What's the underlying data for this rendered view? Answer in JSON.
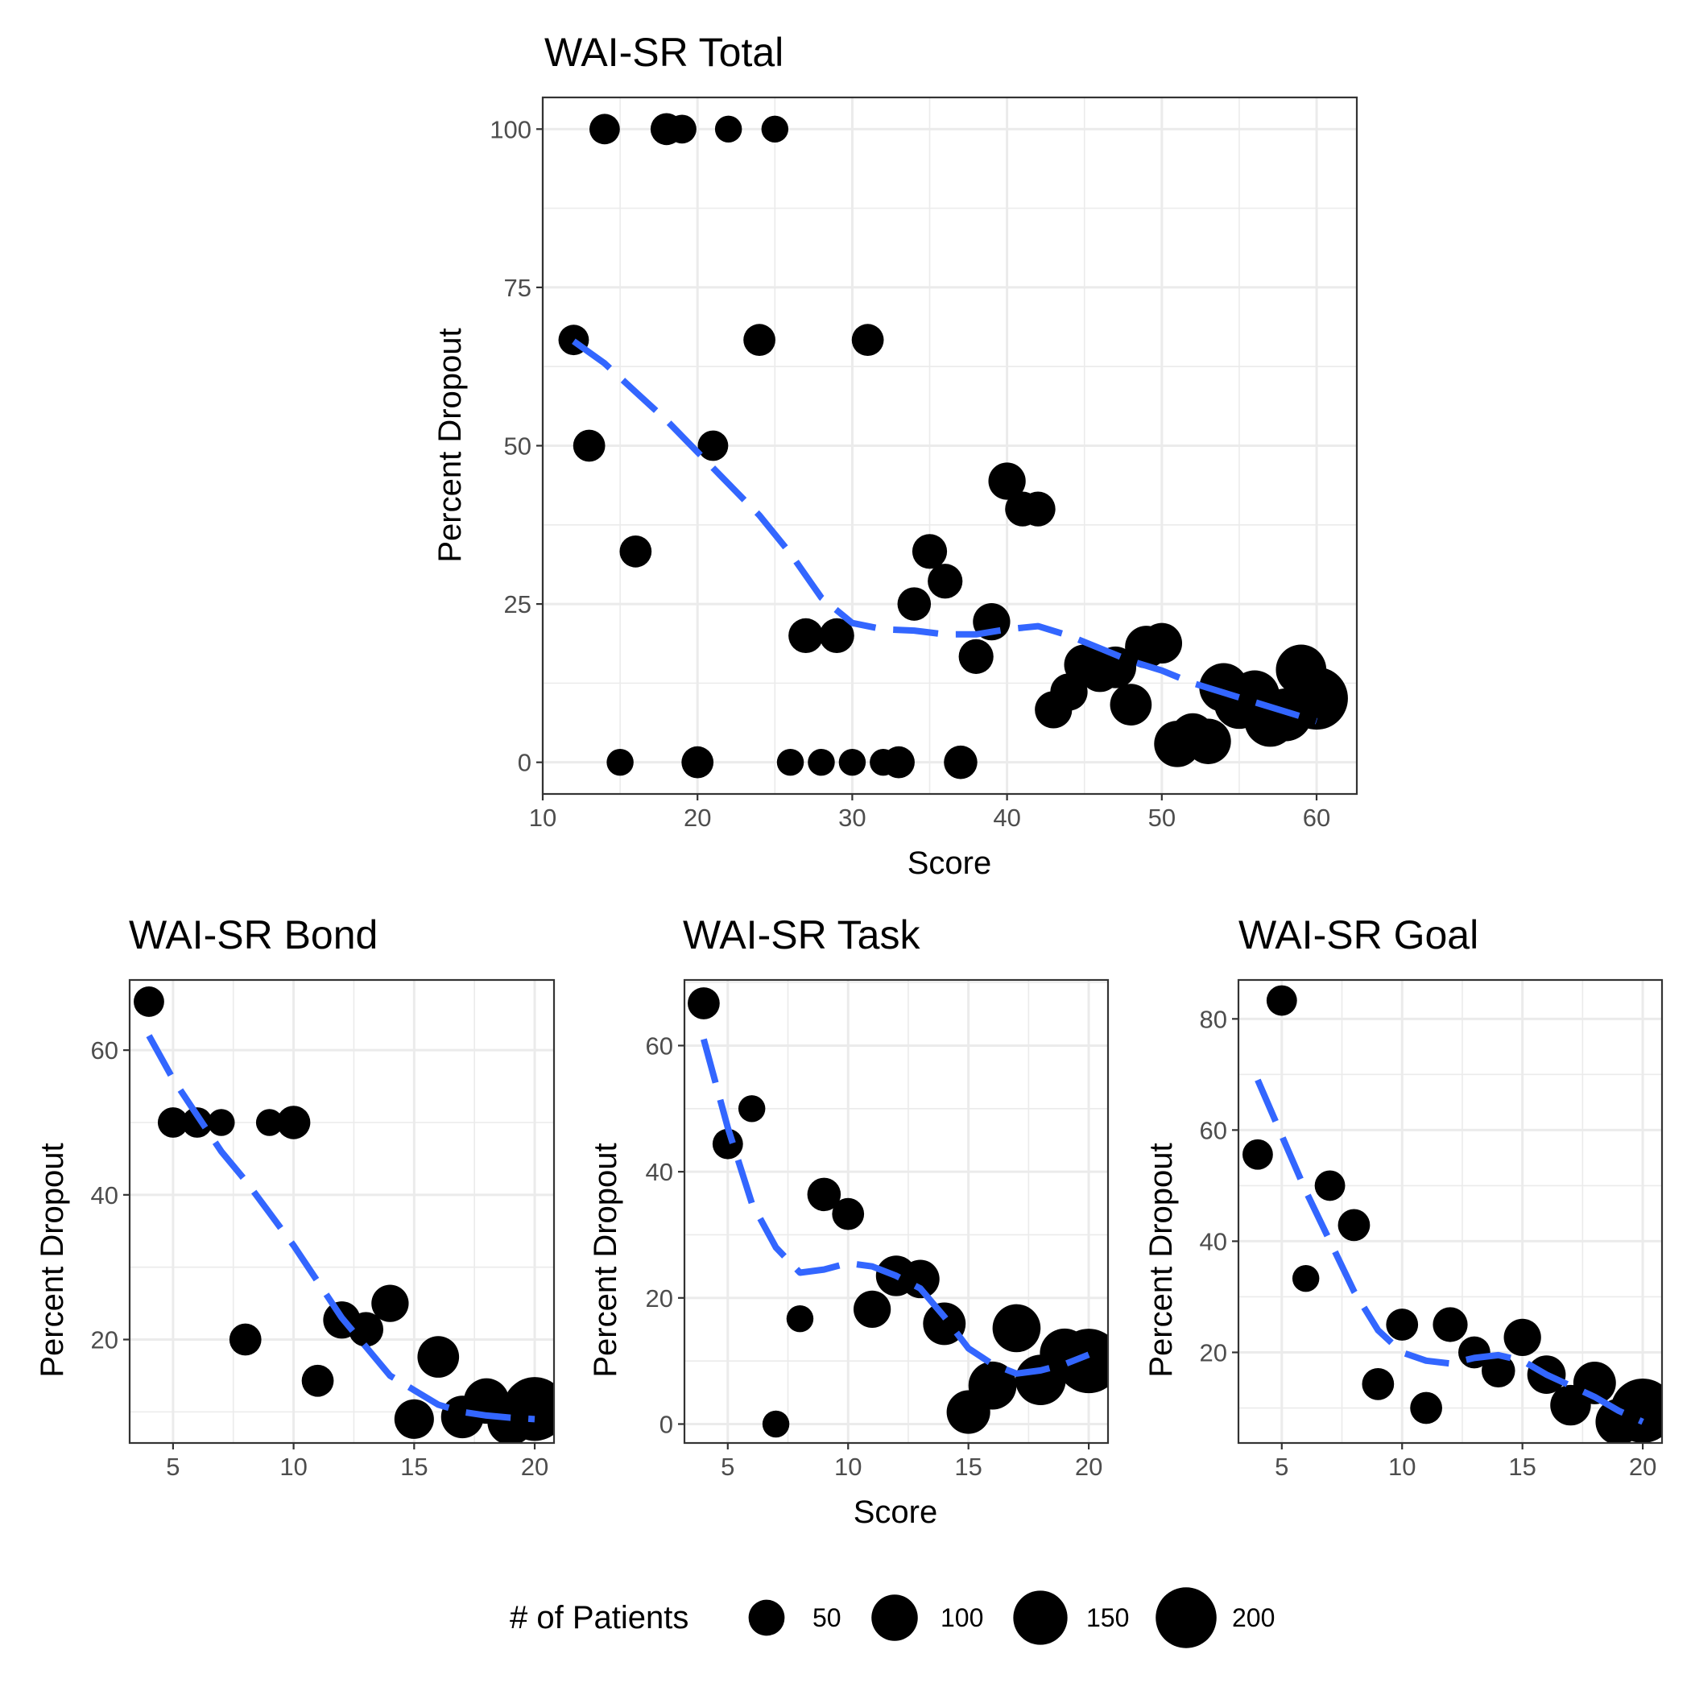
{
  "colors": {
    "smooth": "#3366FF",
    "point": "#000000",
    "grid": "#EBEBEB",
    "frame": "#333333",
    "tick_label": "#4D4D4D"
  },
  "legend": {
    "title": "# of Patients",
    "placement": "bottom",
    "entries": [
      {
        "label": "50",
        "value": 50
      },
      {
        "label": "100",
        "value": 100
      },
      {
        "label": "150",
        "value": 150
      },
      {
        "label": "200",
        "value": 200
      }
    ]
  },
  "chart_data": [
    {
      "id": "total",
      "type": "scatter",
      "title": "WAI-SR Total",
      "xlabel": "Score",
      "ylabel": "Percent Dropout",
      "xlim": [
        10,
        62.6
      ],
      "ylim": [
        -5,
        105
      ],
      "xticks": [
        10,
        20,
        30,
        40,
        50,
        60
      ],
      "xtick_labels": [
        "10",
        "20",
        "30",
        "40",
        "50",
        "60"
      ],
      "yticks": [
        0,
        25,
        50,
        75,
        100
      ],
      "ytick_labels": [
        "0",
        "25",
        "50",
        "75",
        "100"
      ],
      "points": [
        {
          "x": 12,
          "y": 66.7,
          "n": 30
        },
        {
          "x": 13,
          "y": 50,
          "n": 35
        },
        {
          "x": 14,
          "y": 100,
          "n": 30
        },
        {
          "x": 15,
          "y": 0,
          "n": 20
        },
        {
          "x": 16,
          "y": 33.3,
          "n": 35
        },
        {
          "x": 18,
          "y": 100,
          "n": 35
        },
        {
          "x": 19,
          "y": 100,
          "n": 25
        },
        {
          "x": 20,
          "y": 0,
          "n": 35
        },
        {
          "x": 21,
          "y": 50,
          "n": 30
        },
        {
          "x": 22,
          "y": 100,
          "n": 20
        },
        {
          "x": 24,
          "y": 66.7,
          "n": 35
        },
        {
          "x": 25,
          "y": 100,
          "n": 20
        },
        {
          "x": 26,
          "y": 0,
          "n": 20
        },
        {
          "x": 27,
          "y": 20,
          "n": 45
        },
        {
          "x": 28,
          "y": 0,
          "n": 20
        },
        {
          "x": 29,
          "y": 20,
          "n": 45
        },
        {
          "x": 30,
          "y": 0,
          "n": 20
        },
        {
          "x": 31,
          "y": 66.7,
          "n": 35
        },
        {
          "x": 32,
          "y": 0,
          "n": 20
        },
        {
          "x": 33,
          "y": 0,
          "n": 35
        },
        {
          "x": 34,
          "y": 25,
          "n": 40
        },
        {
          "x": 35,
          "y": 33.3,
          "n": 45
        },
        {
          "x": 36,
          "y": 28.6,
          "n": 45
        },
        {
          "x": 37,
          "y": 0,
          "n": 40
        },
        {
          "x": 38,
          "y": 16.7,
          "n": 45
        },
        {
          "x": 39,
          "y": 22.2,
          "n": 55
        },
        {
          "x": 40,
          "y": 44.4,
          "n": 55
        },
        {
          "x": 41,
          "y": 40,
          "n": 45
        },
        {
          "x": 42,
          "y": 40,
          "n": 45
        },
        {
          "x": 43,
          "y": 8.3,
          "n": 55
        },
        {
          "x": 44,
          "y": 11.1,
          "n": 55
        },
        {
          "x": 45,
          "y": 15.4,
          "n": 70
        },
        {
          "x": 46,
          "y": 14.3,
          "n": 70
        },
        {
          "x": 47,
          "y": 15,
          "n": 75
        },
        {
          "x": 48,
          "y": 9.1,
          "n": 75
        },
        {
          "x": 49,
          "y": 18.2,
          "n": 80
        },
        {
          "x": 50,
          "y": 18.8,
          "n": 70
        },
        {
          "x": 51,
          "y": 2.9,
          "n": 100
        },
        {
          "x": 52,
          "y": 4.3,
          "n": 85
        },
        {
          "x": 53,
          "y": 3.3,
          "n": 95
        },
        {
          "x": 54,
          "y": 11.8,
          "n": 115
        },
        {
          "x": 55,
          "y": 9.2,
          "n": 120
        },
        {
          "x": 56,
          "y": 10.6,
          "n": 120
        },
        {
          "x": 57,
          "y": 6.5,
          "n": 130
        },
        {
          "x": 58,
          "y": 7.5,
          "n": 140
        },
        {
          "x": 59,
          "y": 14.6,
          "n": 125
        },
        {
          "x": 60,
          "y": 10.1,
          "n": 215
        }
      ],
      "smooth": {
        "x": [
          12,
          14,
          16,
          18,
          20,
          22,
          24,
          26,
          28,
          30,
          32,
          34,
          36,
          38,
          40,
          42,
          44,
          46,
          48,
          50,
          52,
          54,
          56,
          58,
          60
        ],
        "y": [
          66.5,
          63,
          58.5,
          54,
          49,
          44,
          39,
          33,
          26,
          22,
          21,
          20.8,
          20.2,
          20.2,
          21,
          21.5,
          20,
          18,
          16,
          14.5,
          12.5,
          11,
          9.5,
          8,
          6.5
        ]
      }
    },
    {
      "id": "bond",
      "type": "scatter",
      "title": "WAI-SR Bond",
      "xlabel": "",
      "ylabel": "Percent Dropout",
      "xlim": [
        3.2,
        20.8
      ],
      "ylim": [
        5.7,
        69.7
      ],
      "xticks": [
        5,
        10,
        15,
        20
      ],
      "xtick_labels": [
        "5",
        "10",
        "15",
        "20"
      ],
      "yticks": [
        20,
        40,
        60
      ],
      "ytick_labels": [
        "20",
        "40",
        "60"
      ],
      "points": [
        {
          "x": 4,
          "y": 66.7,
          "n": 30
        },
        {
          "x": 5,
          "y": 50,
          "n": 30
        },
        {
          "x": 6,
          "y": 50,
          "n": 30
        },
        {
          "x": 7,
          "y": 50,
          "n": 20
        },
        {
          "x": 8,
          "y": 20,
          "n": 35
        },
        {
          "x": 9,
          "y": 50,
          "n": 20
        },
        {
          "x": 10,
          "y": 50,
          "n": 40
        },
        {
          "x": 11,
          "y": 14.3,
          "n": 35
        },
        {
          "x": 12,
          "y": 22.7,
          "n": 55
        },
        {
          "x": 13,
          "y": 21.4,
          "n": 45
        },
        {
          "x": 14,
          "y": 25,
          "n": 55
        },
        {
          "x": 15,
          "y": 9,
          "n": 65
        },
        {
          "x": 16,
          "y": 17.6,
          "n": 75
        },
        {
          "x": 17,
          "y": 9.3,
          "n": 80
        },
        {
          "x": 18,
          "y": 11.5,
          "n": 95
        },
        {
          "x": 19,
          "y": 8.6,
          "n": 100
        },
        {
          "x": 20,
          "y": 10.4,
          "n": 225
        }
      ],
      "smooth": {
        "x": [
          4,
          5,
          6,
          7,
          8,
          9,
          10,
          11,
          12,
          13,
          14,
          15,
          16,
          17,
          18,
          19,
          20
        ],
        "y": [
          62,
          56,
          51,
          46,
          42,
          37.5,
          33,
          28,
          23,
          19,
          15,
          13,
          11,
          10,
          9.5,
          9.2,
          9
        ]
      }
    },
    {
      "id": "task",
      "type": "scatter",
      "title": "WAI-SR Task",
      "xlabel": "Score",
      "ylabel": "Percent Dropout",
      "xlim": [
        3.2,
        20.8
      ],
      "ylim": [
        -3,
        70.4
      ],
      "xticks": [
        5,
        10,
        15,
        20
      ],
      "xtick_labels": [
        "5",
        "10",
        "15",
        "20"
      ],
      "yticks": [
        0,
        20,
        40,
        60
      ],
      "ytick_labels": [
        "0",
        "20",
        "40",
        "60"
      ],
      "points": [
        {
          "x": 4,
          "y": 66.7,
          "n": 35
        },
        {
          "x": 5,
          "y": 44.4,
          "n": 30
        },
        {
          "x": 6,
          "y": 50,
          "n": 20
        },
        {
          "x": 7,
          "y": 0,
          "n": 20
        },
        {
          "x": 8,
          "y": 16.7,
          "n": 20
        },
        {
          "x": 9,
          "y": 36.4,
          "n": 40
        },
        {
          "x": 10,
          "y": 33.3,
          "n": 35
        },
        {
          "x": 11,
          "y": 18.2,
          "n": 55
        },
        {
          "x": 12,
          "y": 23.5,
          "n": 70
        },
        {
          "x": 13,
          "y": 23,
          "n": 60
        },
        {
          "x": 14,
          "y": 15.9,
          "n": 80
        },
        {
          "x": 15,
          "y": 1.9,
          "n": 85
        },
        {
          "x": 16,
          "y": 6.1,
          "n": 110
        },
        {
          "x": 17,
          "y": 15.2,
          "n": 110
        },
        {
          "x": 18,
          "y": 7,
          "n": 125
        },
        {
          "x": 19,
          "y": 11.2,
          "n": 120
        },
        {
          "x": 20,
          "y": 10,
          "n": 230
        }
      ],
      "smooth": {
        "x": [
          4,
          5,
          6,
          7,
          8,
          9,
          10,
          11,
          12,
          13,
          14,
          15,
          16,
          17,
          18,
          19,
          20
        ],
        "y": [
          61,
          47,
          35,
          28,
          24,
          24.5,
          25.5,
          25,
          23.5,
          21.5,
          17,
          12,
          9.5,
          8,
          8.5,
          9.5,
          11
        ]
      }
    },
    {
      "id": "goal",
      "type": "scatter",
      "title": "WAI-SR Goal",
      "xlabel": "",
      "ylabel": "Percent Dropout",
      "xlim": [
        3.2,
        20.8
      ],
      "ylim": [
        3.7,
        87
      ],
      "xticks": [
        5,
        10,
        15,
        20
      ],
      "xtick_labels": [
        "5",
        "10",
        "15",
        "20"
      ],
      "yticks": [
        20,
        40,
        60,
        80
      ],
      "ytick_labels": [
        "20",
        "40",
        "60",
        "80"
      ],
      "points": [
        {
          "x": 4,
          "y": 55.6,
          "n": 30
        },
        {
          "x": 5,
          "y": 83.3,
          "n": 30
        },
        {
          "x": 6,
          "y": 33.3,
          "n": 20
        },
        {
          "x": 7,
          "y": 50,
          "n": 30
        },
        {
          "x": 8,
          "y": 42.9,
          "n": 35
        },
        {
          "x": 9,
          "y": 14.3,
          "n": 35
        },
        {
          "x": 10,
          "y": 25,
          "n": 35
        },
        {
          "x": 11,
          "y": 10,
          "n": 35
        },
        {
          "x": 12,
          "y": 25,
          "n": 45
        },
        {
          "x": 13,
          "y": 20,
          "n": 35
        },
        {
          "x": 14,
          "y": 16.7,
          "n": 40
        },
        {
          "x": 15,
          "y": 22.7,
          "n": 55
        },
        {
          "x": 16,
          "y": 16,
          "n": 60
        },
        {
          "x": 17,
          "y": 10.5,
          "n": 70
        },
        {
          "x": 18,
          "y": 14.5,
          "n": 80
        },
        {
          "x": 19,
          "y": 7.5,
          "n": 100
        },
        {
          "x": 20,
          "y": 9.5,
          "n": 230
        }
      ],
      "smooth": {
        "x": [
          4,
          5,
          6,
          7,
          8,
          9,
          10,
          11,
          12,
          13,
          14,
          15,
          16,
          17,
          18,
          19,
          20
        ],
        "y": [
          69,
          59,
          49,
          40,
          31,
          24,
          20,
          18.5,
          18,
          19,
          19.5,
          18.5,
          16,
          14,
          12,
          9.5,
          7.5
        ]
      }
    }
  ]
}
